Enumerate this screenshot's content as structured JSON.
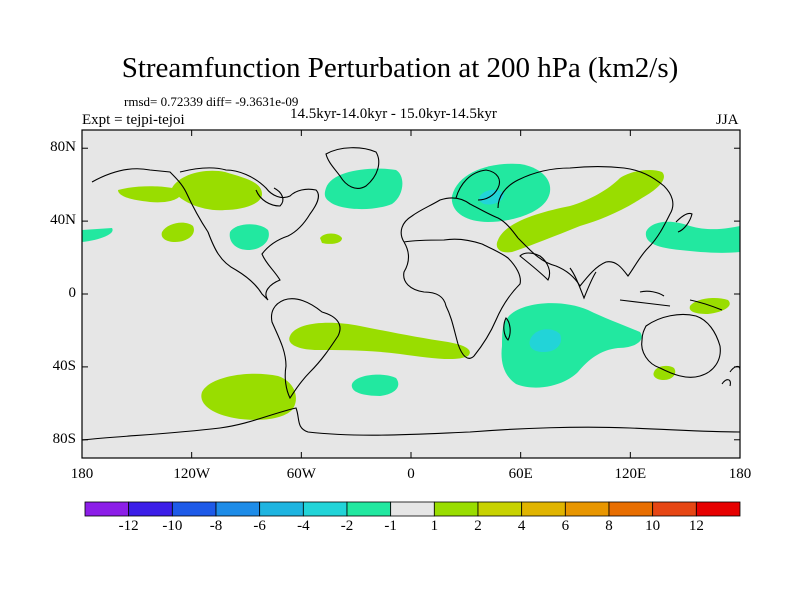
{
  "title": "Streamfunction Perturbation at 200 hPa (km2/s)",
  "stats_line": "rmsd= 0.72339 diff= -9.3631e-09",
  "period_line": "14.5kyr-14.0kyr - 15.0kyr-14.5kyr",
  "experiment": "Expt = tejpi-tejoi",
  "season": "JJA",
  "colors": {
    "background_fill": "#e6e6e6",
    "positive_light": "#99dd00",
    "negative_light": "#22e8a0",
    "negative_medium": "#22d4d8",
    "coastline": "#000000"
  },
  "chart_data": {
    "type": "heatmap",
    "projection": "cylindrical equidistant",
    "xlim": [
      -180,
      180
    ],
    "ylim": [
      -90,
      90
    ],
    "x_ticks": [
      {
        "value": -180,
        "label": "180"
      },
      {
        "value": -120,
        "label": "120W"
      },
      {
        "value": -60,
        "label": "60W"
      },
      {
        "value": 0,
        "label": "0"
      },
      {
        "value": 60,
        "label": "60E"
      },
      {
        "value": 120,
        "label": "120E"
      },
      {
        "value": 180,
        "label": "180"
      }
    ],
    "y_ticks": [
      {
        "value": 80,
        "label": "80N"
      },
      {
        "value": 40,
        "label": "40N"
      },
      {
        "value": 0,
        "label": "0"
      },
      {
        "value": -40,
        "label": "40S"
      },
      {
        "value": -80,
        "label": "80S"
      }
    ],
    "colorbar": {
      "levels": [
        -12,
        -10,
        -8,
        -6,
        -4,
        -2,
        -1,
        1,
        2,
        4,
        6,
        8,
        10,
        12
      ],
      "labels": [
        "-12",
        "-10",
        "-8",
        "-6",
        "-4",
        "-2",
        "-1",
        "1",
        "2",
        "4",
        "6",
        "8",
        "10",
        "12"
      ],
      "colors": [
        "#8c1ee8",
        "#3c1ee8",
        "#1e5ae8",
        "#1e8ce8",
        "#1eb4e0",
        "#22d4d8",
        "#22e8a0",
        "#e6e6e6",
        "#99dd00",
        "#c8d200",
        "#e0b400",
        "#e89600",
        "#e86e00",
        "#e64614",
        "#e60000"
      ]
    },
    "anomaly_regions": [
      {
        "name": "N Pacific / Alaska",
        "sign": "+",
        "level": "1 to 2",
        "lon": [
          -160,
          -90
        ],
        "lat": [
          45,
          75
        ]
      },
      {
        "name": "NE Pacific",
        "sign": "+",
        "level": "1 to 2",
        "lon": [
          -135,
          -125
        ],
        "lat": [
          32,
          42
        ]
      },
      {
        "name": "Far E Pacific edge",
        "sign": "-",
        "level": "-2 to -1",
        "lon": [
          -180,
          -175
        ],
        "lat": [
          30,
          38
        ]
      },
      {
        "name": "Central N America",
        "sign": "-",
        "level": "-2 to -1",
        "lon": [
          -100,
          -80
        ],
        "lat": [
          25,
          38
        ]
      },
      {
        "name": "N Atlantic / Greenland",
        "sign": "-",
        "level": "-2 to -1",
        "lon": [
          -40,
          -5
        ],
        "lat": [
          53,
          73
        ]
      },
      {
        "name": "Mid Atlantic",
        "sign": "+",
        "level": "1 to 2",
        "lon": [
          -50,
          -40
        ],
        "lat": [
          32,
          36
        ]
      },
      {
        "name": "Scandinavia / N Russia",
        "sign": "-",
        "level": "-4 to -2",
        "lon": [
          20,
          75
        ],
        "lat": [
          45,
          75
        ]
      },
      {
        "name": "Eurasian belt",
        "sign": "+",
        "level": "1 to 2",
        "lon": [
          50,
          140
        ],
        "lat": [
          25,
          68
        ]
      },
      {
        "name": "NW Pacific / Japan",
        "sign": "-",
        "level": "-2 to -1",
        "lon": [
          130,
          180
        ],
        "lat": [
          25,
          40
        ]
      },
      {
        "name": "S Atlantic band",
        "sign": "+",
        "level": "1 to 2",
        "lon": [
          -65,
          5
        ],
        "lat": [
          -38,
          -15
        ]
      },
      {
        "name": "SE Pacific",
        "sign": "+",
        "level": "1 to 2",
        "lon": [
          -115,
          -65
        ],
        "lat": [
          -63,
          -40
        ]
      },
      {
        "name": "S Atlantic small",
        "sign": "-",
        "level": "-2 to -1",
        "lon": [
          -30,
          -15
        ],
        "lat": [
          -50,
          -40
        ]
      },
      {
        "name": "Indian Ocean",
        "sign": "-",
        "level": "-4 to -2",
        "lon": [
          15,
          95
        ],
        "lat": [
          -48,
          -5
        ]
      },
      {
        "name": "W Pacific tropics",
        "sign": "+",
        "level": "1 to 2",
        "lon": [
          155,
          180
        ],
        "lat": [
          -10,
          -2
        ]
      },
      {
        "name": "SW Pacific",
        "sign": "+",
        "level": "1 to 2",
        "lon": [
          140,
          150
        ],
        "lat": [
          -45,
          -38
        ]
      }
    ]
  }
}
